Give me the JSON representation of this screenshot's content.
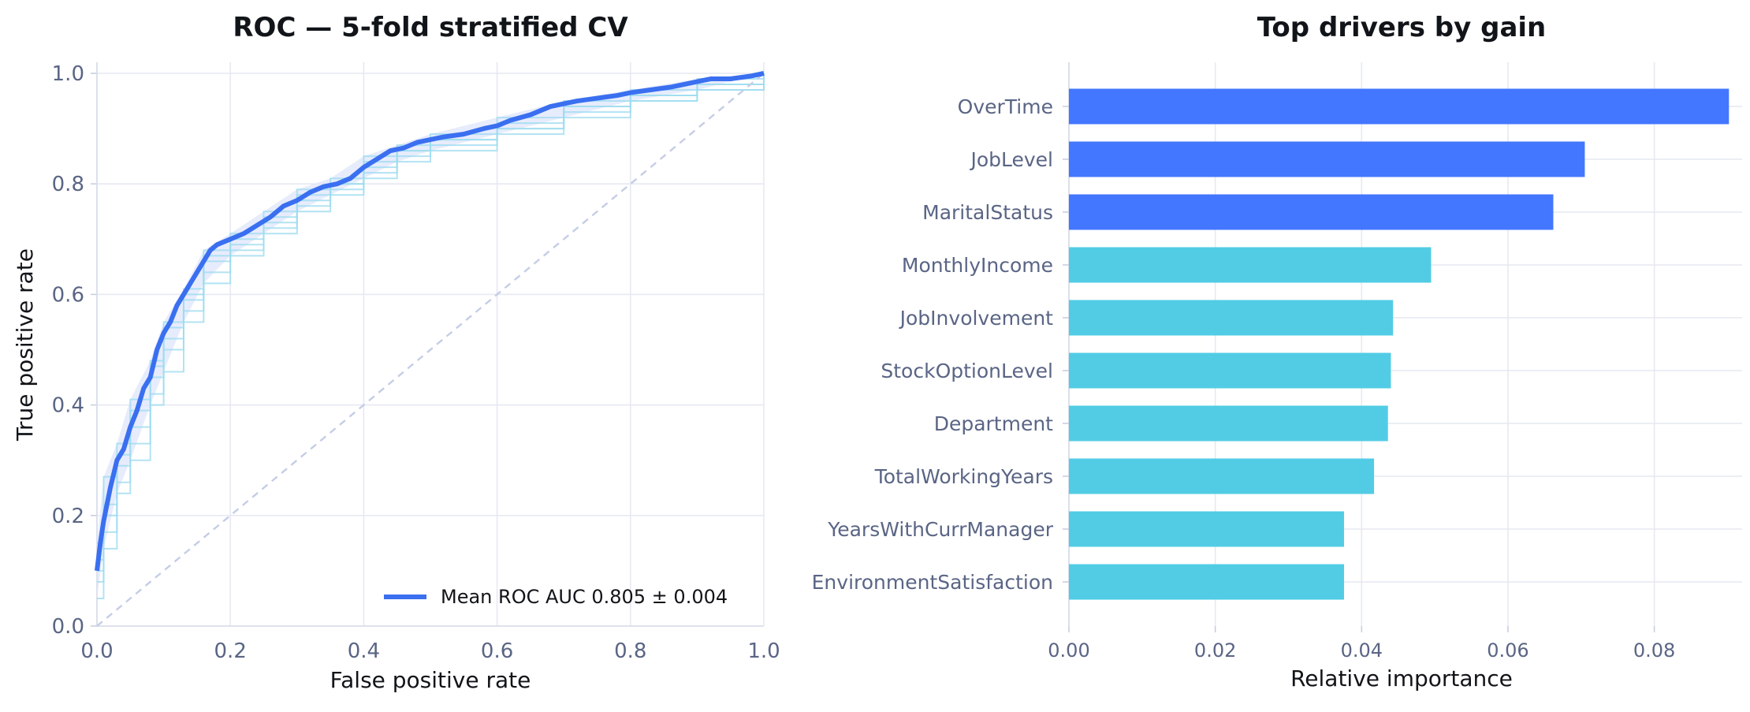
{
  "chart_data": [
    {
      "type": "line",
      "title": "ROC — 5-fold stratified CV",
      "xlabel": "False positive rate",
      "ylabel": "True positive rate",
      "xlim": [
        0,
        1
      ],
      "ylim": [
        0,
        1
      ],
      "xticks": [
        "0.0",
        "0.2",
        "0.4",
        "0.6",
        "0.8",
        "1.0"
      ],
      "yticks": [
        "0.0",
        "0.2",
        "0.4",
        "0.6",
        "0.8",
        "1.0"
      ],
      "grid": true,
      "legend": {
        "placement": "lower-right",
        "entries": [
          "Mean ROC  AUC 0.805 ± 0.004"
        ]
      },
      "colors": {
        "mean": "#3a6ff0",
        "folds": "#9fdcf0",
        "band": "#dfe6fb",
        "chance": "#c5cde6"
      },
      "series": [
        {
          "name": "Mean ROC  AUC 0.805 ± 0.004",
          "x": [
            0,
            0.005,
            0.01,
            0.02,
            0.03,
            0.04,
            0.05,
            0.06,
            0.07,
            0.08,
            0.09,
            0.1,
            0.11,
            0.12,
            0.13,
            0.14,
            0.15,
            0.16,
            0.17,
            0.18,
            0.19,
            0.2,
            0.22,
            0.24,
            0.26,
            0.28,
            0.3,
            0.32,
            0.34,
            0.36,
            0.38,
            0.4,
            0.42,
            0.44,
            0.46,
            0.48,
            0.5,
            0.52,
            0.55,
            0.58,
            0.6,
            0.62,
            0.65,
            0.68,
            0.7,
            0.72,
            0.75,
            0.78,
            0.8,
            0.83,
            0.86,
            0.88,
            0.9,
            0.92,
            0.95,
            0.98,
            1.0
          ],
          "y": [
            0.1,
            0.15,
            0.19,
            0.25,
            0.3,
            0.32,
            0.36,
            0.39,
            0.43,
            0.45,
            0.5,
            0.53,
            0.55,
            0.58,
            0.6,
            0.62,
            0.64,
            0.66,
            0.68,
            0.69,
            0.695,
            0.7,
            0.71,
            0.725,
            0.74,
            0.76,
            0.77,
            0.785,
            0.795,
            0.8,
            0.81,
            0.83,
            0.845,
            0.86,
            0.865,
            0.875,
            0.88,
            0.885,
            0.89,
            0.9,
            0.905,
            0.915,
            0.925,
            0.94,
            0.945,
            0.95,
            0.955,
            0.96,
            0.965,
            0.97,
            0.975,
            0.98,
            0.985,
            0.99,
            0.99,
            0.995,
            1.0
          ]
        },
        {
          "name": "",
          "x": [
            0,
            0.01,
            0.03,
            0.05,
            0.08,
            0.1,
            0.13,
            0.16,
            0.2,
            0.25,
            0.3,
            0.35,
            0.4,
            0.45,
            0.5,
            0.6,
            0.7,
            0.8,
            0.9,
            1.0
          ],
          "y": [
            0.05,
            0.22,
            0.31,
            0.39,
            0.48,
            0.55,
            0.6,
            0.66,
            0.7,
            0.74,
            0.78,
            0.8,
            0.83,
            0.86,
            0.88,
            0.91,
            0.94,
            0.96,
            0.98,
            1.0
          ]
        },
        {
          "name": "",
          "x": [
            0,
            0.01,
            0.03,
            0.05,
            0.08,
            0.1,
            0.13,
            0.16,
            0.2,
            0.25,
            0.3,
            0.35,
            0.4,
            0.45,
            0.5,
            0.6,
            0.7,
            0.8,
            0.9,
            1.0
          ],
          "y": [
            0.12,
            0.17,
            0.26,
            0.33,
            0.42,
            0.5,
            0.57,
            0.64,
            0.68,
            0.72,
            0.76,
            0.79,
            0.82,
            0.85,
            0.87,
            0.9,
            0.93,
            0.95,
            0.97,
            1.0
          ]
        },
        {
          "name": "",
          "x": [
            0,
            0.01,
            0.03,
            0.05,
            0.08,
            0.1,
            0.13,
            0.16,
            0.2,
            0.25,
            0.3,
            0.35,
            0.4,
            0.45,
            0.5,
            0.6,
            0.7,
            0.8,
            0.9,
            1.0
          ],
          "y": [
            0.08,
            0.27,
            0.33,
            0.41,
            0.45,
            0.54,
            0.59,
            0.68,
            0.71,
            0.73,
            0.77,
            0.81,
            0.85,
            0.87,
            0.89,
            0.92,
            0.95,
            0.97,
            0.99,
            1.0
          ]
        },
        {
          "name": "",
          "x": [
            0,
            0.01,
            0.03,
            0.05,
            0.08,
            0.1,
            0.13,
            0.16,
            0.2,
            0.25,
            0.3,
            0.35,
            0.4,
            0.45,
            0.5,
            0.6,
            0.7,
            0.8,
            0.9,
            1.0
          ],
          "y": [
            0.1,
            0.14,
            0.24,
            0.3,
            0.4,
            0.46,
            0.55,
            0.62,
            0.67,
            0.71,
            0.75,
            0.78,
            0.81,
            0.84,
            0.86,
            0.89,
            0.92,
            0.95,
            0.97,
            1.0
          ]
        },
        {
          "name": "",
          "x": [
            0,
            0.01,
            0.03,
            0.05,
            0.08,
            0.1,
            0.13,
            0.16,
            0.2,
            0.25,
            0.3,
            0.35,
            0.4,
            0.45,
            0.5,
            0.6,
            0.7,
            0.8,
            0.9,
            1.0
          ],
          "y": [
            0.15,
            0.2,
            0.29,
            0.36,
            0.47,
            0.52,
            0.61,
            0.67,
            0.69,
            0.75,
            0.79,
            0.8,
            0.84,
            0.86,
            0.88,
            0.9,
            0.94,
            0.96,
            0.98,
            1.0
          ]
        }
      ],
      "band": {
        "x": [
          0,
          0.01,
          0.03,
          0.05,
          0.08,
          0.1,
          0.13,
          0.16,
          0.2,
          0.25,
          0.3,
          0.35,
          0.4,
          0.45,
          0.5,
          0.6,
          0.7,
          0.8,
          0.9,
          1.0
        ],
        "lower": [
          0.05,
          0.14,
          0.24,
          0.3,
          0.4,
          0.46,
          0.55,
          0.62,
          0.67,
          0.71,
          0.75,
          0.78,
          0.81,
          0.84,
          0.86,
          0.89,
          0.92,
          0.95,
          0.97,
          1.0
        ],
        "upper": [
          0.15,
          0.27,
          0.33,
          0.41,
          0.48,
          0.55,
          0.61,
          0.68,
          0.71,
          0.75,
          0.79,
          0.81,
          0.85,
          0.87,
          0.89,
          0.92,
          0.95,
          0.97,
          0.99,
          1.0
        ]
      },
      "chance_line": {
        "x": [
          0,
          1
        ],
        "y": [
          0,
          1
        ]
      }
    },
    {
      "type": "bar",
      "orientation": "horizontal",
      "title": "Top drivers by gain",
      "xlabel": "Relative importance",
      "ylabel": "",
      "xlim": [
        0,
        0.092
      ],
      "xticks": [
        "0.00",
        "0.02",
        "0.04",
        "0.06",
        "0.08"
      ],
      "grid": true,
      "categories": [
        "OverTime",
        "JobLevel",
        "MaritalStatus",
        "MonthlyIncome",
        "JobInvolvement",
        "StockOptionLevel",
        "Department",
        "TotalWorkingYears",
        "YearsWithCurrManager",
        "EnvironmentSatisfaction"
      ],
      "values": [
        0.0902,
        0.0705,
        0.0662,
        0.0495,
        0.0443,
        0.044,
        0.0436,
        0.0417,
        0.0376,
        0.0376
      ],
      "colors": [
        "#4477ff",
        "#4477ff",
        "#4477ff",
        "#52cce5",
        "#52cce5",
        "#52cce5",
        "#52cce5",
        "#52cce5",
        "#52cce5",
        "#52cce5"
      ]
    }
  ]
}
